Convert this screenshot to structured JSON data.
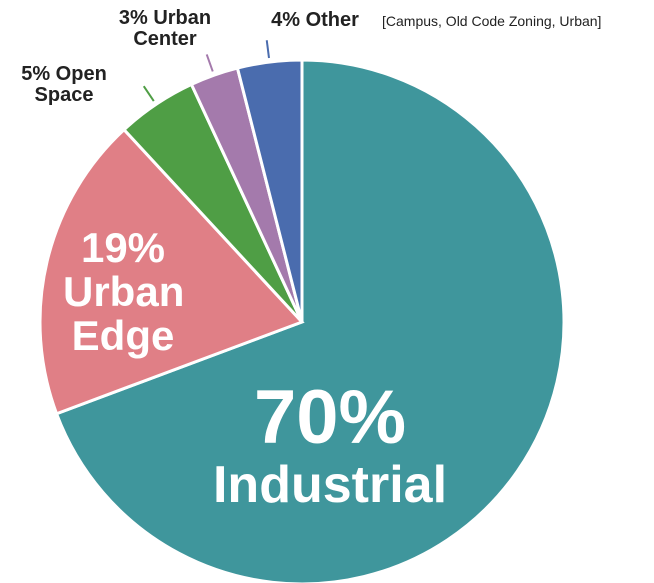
{
  "chart_data": {
    "type": "pie",
    "categories": [
      "Industrial",
      "Urban Edge",
      "Open Space",
      "Urban Center",
      "Other"
    ],
    "values": [
      70,
      19,
      5,
      3,
      4
    ],
    "value_labels": [
      "70%",
      "19%",
      "5%",
      "3%",
      "4%"
    ],
    "colors": [
      "#3f969c",
      "#e07f86",
      "#4f9e45",
      "#a47aac",
      "#4a6cae"
    ],
    "annotation": "[Campus, Old Code Zoning, Urban]"
  }
}
